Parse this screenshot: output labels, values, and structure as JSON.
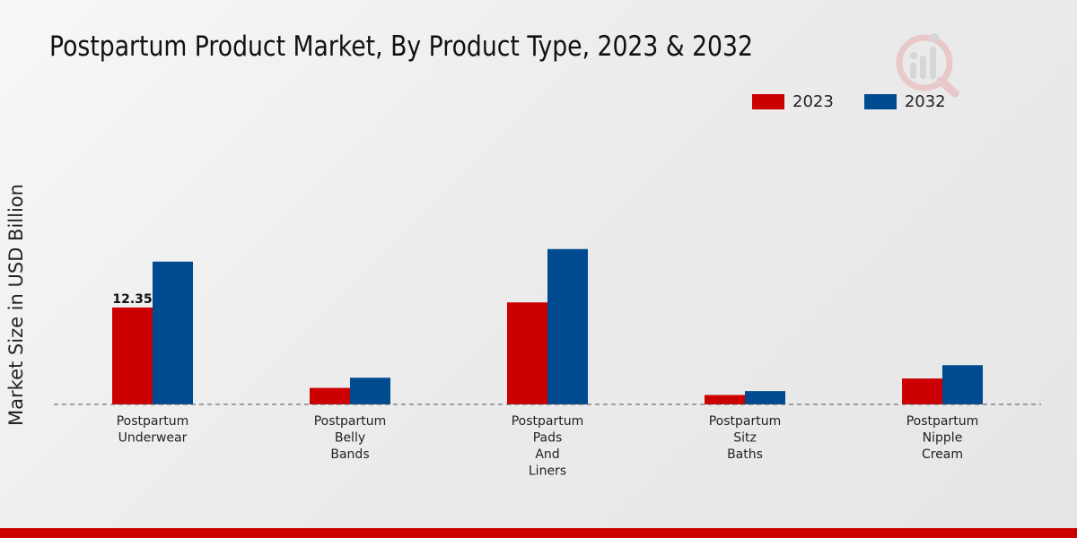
{
  "chart_data": {
    "type": "bar",
    "title": "Postpartum Product Market, By Product Type, 2023 & 2032",
    "xlabel": "",
    "ylabel": "Market Size in USD Billion",
    "categories": [
      [
        "Postpartum",
        "Underwear"
      ],
      [
        "Postpartum",
        "Belly",
        "Bands"
      ],
      [
        "Postpartum",
        "Pads",
        "And",
        "Liners"
      ],
      [
        "Postpartum",
        "Sitz",
        "Baths"
      ],
      [
        "Postpartum",
        "Nipple",
        "Cream"
      ]
    ],
    "series": [
      {
        "name": "2023",
        "color": "#cc0000",
        "values": [
          12.35,
          2.1,
          13.0,
          1.2,
          3.3
        ]
      },
      {
        "name": "2032",
        "color": "#004a8f",
        "values": [
          18.2,
          3.4,
          19.8,
          1.7,
          5.0
        ]
      }
    ],
    "data_labels": [
      {
        "series": 0,
        "index": 0,
        "text": "12.35"
      }
    ],
    "ylim": [
      0,
      30
    ],
    "legend_position": "top-right"
  }
}
